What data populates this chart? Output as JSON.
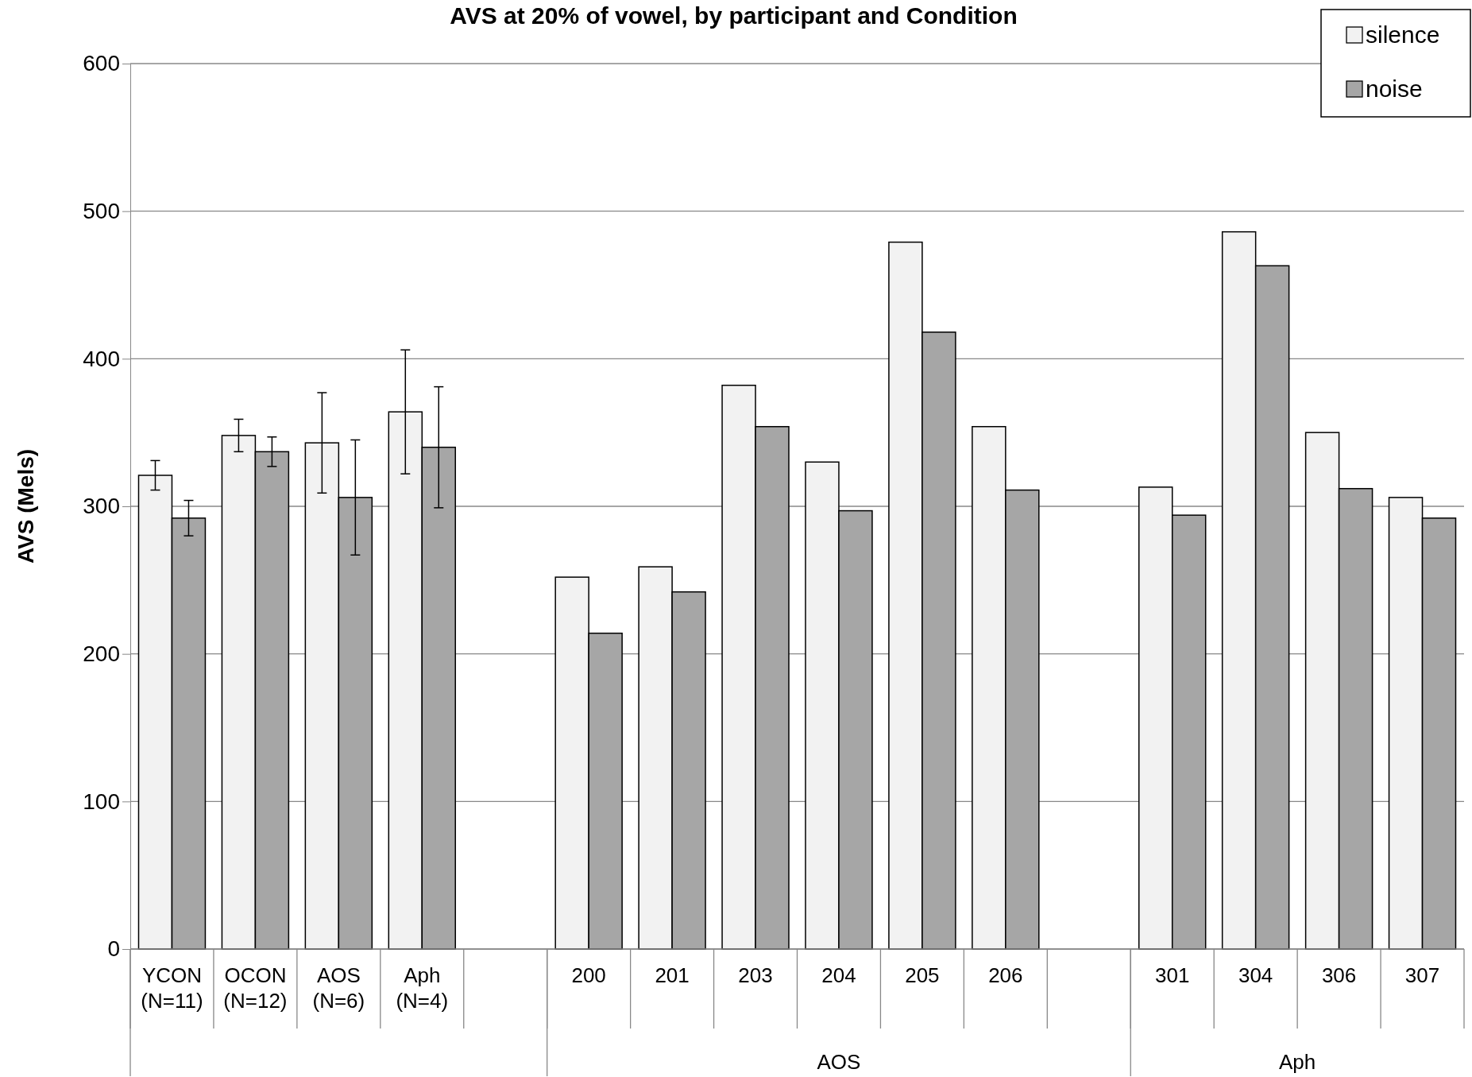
{
  "chart_data": {
    "type": "bar",
    "title": "AVS at 20% of vowel, by participant and Condition",
    "ylabel": "AVS (Mels)",
    "categories": [
      "YCON (N=11)",
      "OCON (N=12)",
      "AOS (N=6)",
      "Aph (N=4)",
      null,
      "200",
      "201",
      "203",
      "204",
      "205",
      "206",
      null,
      "301",
      "304",
      "306",
      "307"
    ],
    "series": [
      {
        "name": "silence",
        "color": "#f2f2f2",
        "values": [
          321,
          348,
          343,
          364,
          null,
          252,
          259,
          382,
          330,
          479,
          354,
          null,
          313,
          486,
          350,
          306
        ],
        "errors": [
          10,
          11,
          34,
          42,
          null,
          null,
          null,
          null,
          null,
          null,
          null,
          null,
          null,
          null,
          null,
          null
        ]
      },
      {
        "name": "noise",
        "color": "#a6a6a6",
        "values": [
          292,
          337,
          306,
          340,
          null,
          214,
          242,
          354,
          297,
          418,
          311,
          null,
          294,
          463,
          312,
          292
        ],
        "errors": [
          12,
          10,
          39,
          41,
          null,
          null,
          null,
          null,
          null,
          null,
          null,
          null,
          null,
          null,
          null,
          null
        ]
      }
    ],
    "ylim": [
      0,
      600
    ],
    "yticks": [
      0,
      100,
      200,
      300,
      400,
      500,
      600
    ],
    "grid": "y",
    "legend": "top right",
    "annotations": [
      "AOS",
      "Aph"
    ]
  }
}
